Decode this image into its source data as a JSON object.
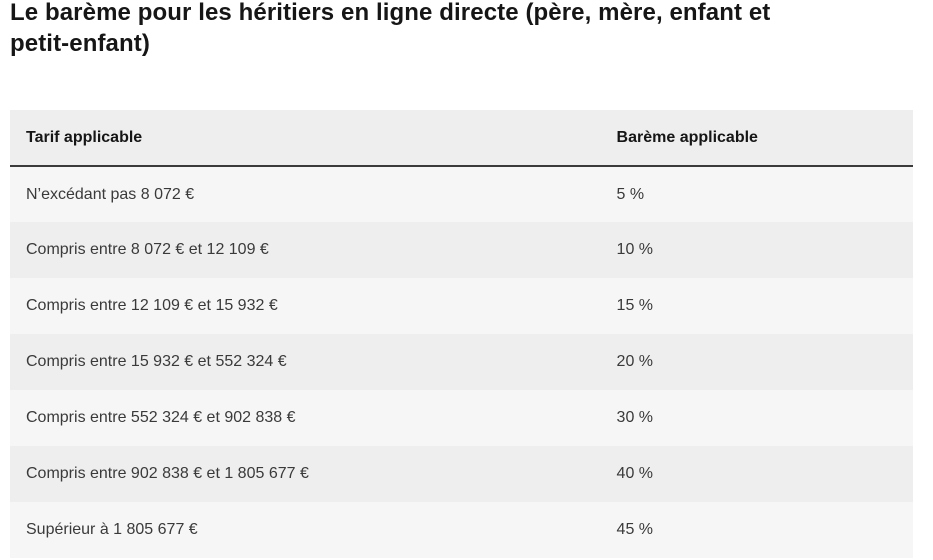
{
  "page": {
    "title": "Le barème pour les héritiers en ligne directe (père, mère, enfant et petit-enfant)",
    "title_lines": [
      "Le barème pour les héritiers en ligne directe (père, mère, enfant et",
      "petit-enfant)"
    ]
  },
  "table": {
    "columns": [
      "Tarif applicable",
      "Barème applicable"
    ],
    "rows": [
      {
        "tranche": "N’excédant pas 8 072 €",
        "rate": "5 %"
      },
      {
        "tranche": "Compris entre 8 072 € et 12 109 €",
        "rate": "10 %"
      },
      {
        "tranche": "Compris entre 12 109 € et 15 932 €",
        "rate": "15 %"
      },
      {
        "tranche": "Compris entre 15 932 € et 552 324 €",
        "rate": "20 %"
      },
      {
        "tranche": "Compris entre 552 324 € et 902 838 €",
        "rate": "30 %"
      },
      {
        "tranche": "Compris entre 902 838 € et 1 805 677 €",
        "rate": "40 %"
      },
      {
        "tranche": "Supérieur à 1 805 677 €",
        "rate": "45 %"
      }
    ]
  },
  "colors": {
    "title_text": "#161616",
    "header_background": "#eeeeee",
    "header_text": "#161616",
    "header_border": "#3a3a3a",
    "row_odd_background": "#f6f6f6",
    "row_even_background": "#eeeeee",
    "row_text": "#3a3a3a",
    "page_background": "#ffffff"
  }
}
